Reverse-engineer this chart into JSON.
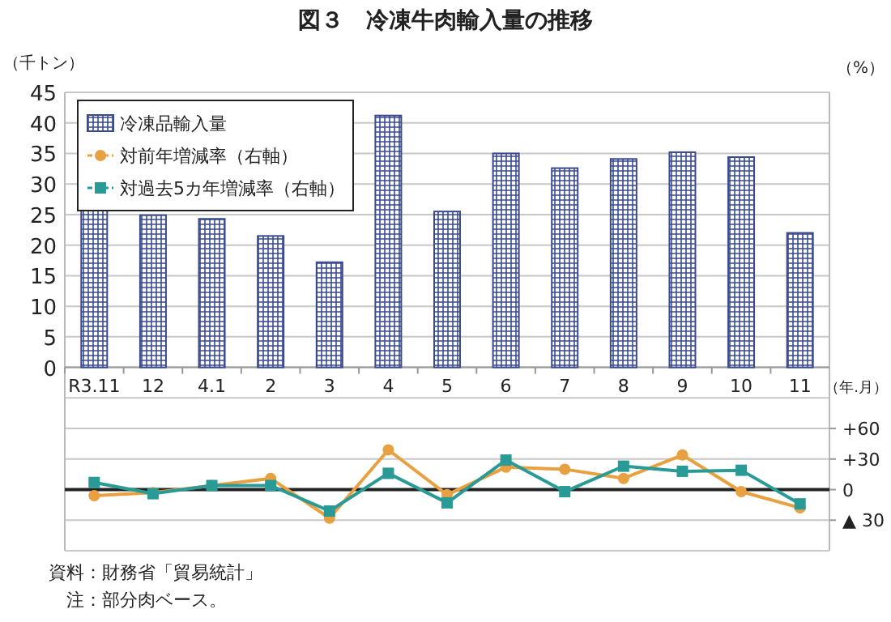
{
  "chart_data": {
    "type": "bar",
    "title": "図３　冷凍牛肉輸入量の推移",
    "ylabel": "（千トン）",
    "y2label": "（%）",
    "xlabel": "（年.月）",
    "categories": [
      "R3.11",
      "12",
      "4.1",
      "2",
      "3",
      "4",
      "5",
      "6",
      "7",
      "8",
      "9",
      "10",
      "11"
    ],
    "series": [
      {
        "name": "冷凍品輸入量",
        "color": "#3a4a8c",
        "values": [
          26.3,
          24.9,
          24.3,
          21.5,
          17.2,
          41.2,
          25.5,
          35.0,
          32.6,
          34.1,
          35.2,
          34.4,
          22.0
        ]
      },
      {
        "name": "対前年増減率（右軸）",
        "type": "line",
        "axis": "y2",
        "color": "#e8a040",
        "marker": "circle",
        "values": [
          -6,
          -3,
          4,
          11,
          -28,
          39,
          -5,
          22,
          20,
          11,
          34,
          -2,
          -18
        ]
      },
      {
        "name": "対過去5カ年増減率（右軸）",
        "type": "line",
        "axis": "y2",
        "color": "#2a9a96",
        "marker": "square",
        "values": [
          7,
          -4,
          4,
          4,
          -21,
          16,
          -13,
          29,
          -2,
          23,
          18,
          19,
          -14
        ]
      }
    ],
    "ylim": [
      -30,
      45
    ],
    "yticks": [
      {
        "value": -30,
        "label": null
      },
      {
        "value": -25,
        "label": null
      },
      {
        "value": -20,
        "label": null
      },
      {
        "value": -15,
        "label": null
      },
      {
        "value": -10,
        "label": null
      },
      {
        "value": -5,
        "label": null
      },
      0,
      5,
      10,
      15,
      20,
      25,
      30,
      35,
      40,
      45
    ],
    "y2lim": [
      -60,
      390
    ],
    "y2ticks": [
      {
        "value": -30,
        "label": "▲ 30"
      },
      0,
      {
        "value": 30,
        "label": "+30"
      },
      {
        "value": 60,
        "label": "+60"
      }
    ],
    "ref_lines": [
      {
        "axis": "y2",
        "value": 0,
        "label": null,
        "color": "#222222"
      }
    ],
    "grid": "y",
    "legend": "top left",
    "annotations": [
      "資料：財務省「貿易統計」",
      "　注：部分肉ベース。"
    ]
  }
}
